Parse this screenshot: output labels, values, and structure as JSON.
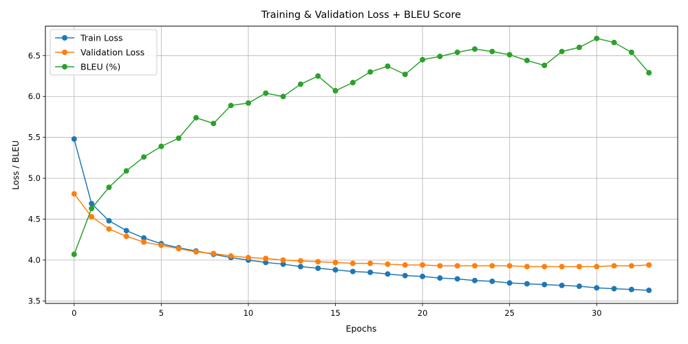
{
  "chart_data": {
    "type": "line",
    "title": "Training & Validation Loss + BLEU Score",
    "xlabel": "Epochs",
    "ylabel": "Loss / BLEU",
    "xlim": [
      -1.65,
      34.65
    ],
    "ylim": [
      3.47,
      6.86
    ],
    "xticks": [
      0,
      5,
      10,
      15,
      20,
      25,
      30
    ],
    "yticks": [
      3.5,
      4.0,
      4.5,
      5.0,
      5.5,
      6.0,
      6.5
    ],
    "xtick_labels": [
      "0",
      "5",
      "10",
      "15",
      "20",
      "25",
      "30"
    ],
    "ytick_labels": [
      "3.5",
      "4.0",
      "4.5",
      "5.0",
      "5.5",
      "6.0",
      "6.5"
    ],
    "grid": true,
    "legend_position": "upper-left",
    "x": [
      0,
      1,
      2,
      3,
      4,
      5,
      6,
      7,
      8,
      9,
      10,
      11,
      12,
      13,
      14,
      15,
      16,
      17,
      18,
      19,
      20,
      21,
      22,
      23,
      24,
      25,
      26,
      27,
      28,
      29,
      30,
      31,
      32,
      33
    ],
    "series": [
      {
        "name": "Train Loss",
        "color": "#1f77b4",
        "values": [
          5.48,
          4.69,
          4.48,
          4.36,
          4.27,
          4.2,
          4.15,
          4.11,
          4.07,
          4.03,
          4.0,
          3.97,
          3.95,
          3.92,
          3.9,
          3.88,
          3.86,
          3.85,
          3.83,
          3.81,
          3.8,
          3.78,
          3.77,
          3.75,
          3.74,
          3.72,
          3.71,
          3.7,
          3.69,
          3.68,
          3.66,
          3.65,
          3.64,
          3.63
        ]
      },
      {
        "name": "Validation Loss",
        "color": "#ff7f0e",
        "values": [
          4.81,
          4.53,
          4.38,
          4.29,
          4.22,
          4.18,
          4.14,
          4.1,
          4.08,
          4.05,
          4.03,
          4.02,
          4.0,
          3.99,
          3.98,
          3.97,
          3.96,
          3.96,
          3.95,
          3.94,
          3.94,
          3.93,
          3.93,
          3.93,
          3.93,
          3.93,
          3.92,
          3.92,
          3.92,
          3.92,
          3.92,
          3.93,
          3.93,
          3.94
        ]
      },
      {
        "name": "BLEU (%)",
        "color": "#2ca02c",
        "values": [
          4.07,
          4.63,
          4.89,
          5.09,
          5.26,
          5.39,
          5.49,
          5.74,
          5.67,
          5.89,
          5.92,
          6.04,
          6.0,
          6.15,
          6.25,
          6.07,
          6.17,
          6.3,
          6.37,
          6.27,
          6.45,
          6.49,
          6.54,
          6.58,
          6.55,
          6.51,
          6.44,
          6.38,
          6.55,
          6.6,
          6.71,
          6.66,
          6.54,
          6.29
        ]
      }
    ]
  }
}
